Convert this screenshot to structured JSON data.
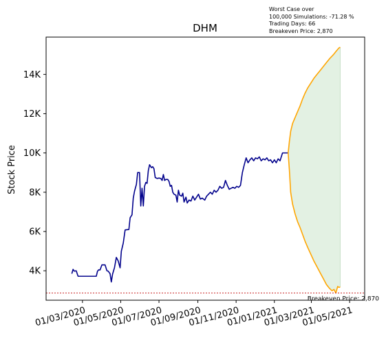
{
  "chart_data": {
    "type": "line",
    "title": "DHM",
    "xlabel": "",
    "ylabel": "Stock Price",
    "x_ticks": [
      "01/03/2020",
      "01/05/2020",
      "01/07/2020",
      "01/09/2020",
      "01/11/2020",
      "01/01/2021",
      "01/03/2021",
      "01/05/2021"
    ],
    "y_ticks": [
      "4K",
      "6K",
      "8K",
      "10K",
      "12K",
      "14K"
    ],
    "y_tick_values": [
      4000,
      6000,
      8000,
      10000,
      12000,
      14000
    ],
    "ylim": [
      2500,
      15900
    ],
    "xlim": [
      "2020-01-03",
      "2021-05-25"
    ],
    "grid": false,
    "annotation": {
      "lines": [
        "Worst Case over",
        "100,000 Simulations: -71.28 %",
        "Trading Days: 66",
        "Breakeven Price: 2,870"
      ]
    },
    "breakeven": {
      "value": 2870,
      "label": "Breakeven Price: 2,870",
      "color": "#c00000"
    },
    "colors": {
      "history": "#00008b",
      "simulation": "#ffa500",
      "band": "#e3f1e3",
      "band_edge": "#c8dfc8"
    },
    "series": [
      {
        "role": "history",
        "points": [
          [
            "2020-02-13",
            3850
          ],
          [
            "2020-02-15",
            4070
          ],
          [
            "2020-02-17",
            3980
          ],
          [
            "2020-02-20",
            4000
          ],
          [
            "2020-02-23",
            3720
          ],
          [
            "2020-03-05",
            3720
          ],
          [
            "2020-03-16",
            3720
          ],
          [
            "2020-03-23",
            3720
          ],
          [
            "2020-03-25",
            3980
          ],
          [
            "2020-03-27",
            4050
          ],
          [
            "2020-03-29",
            4040
          ],
          [
            "2020-04-01",
            4300
          ],
          [
            "2020-04-06",
            4300
          ],
          [
            "2020-04-09",
            4000
          ],
          [
            "2020-04-11",
            3980
          ],
          [
            "2020-04-14",
            3850
          ],
          [
            "2020-04-16",
            3430
          ],
          [
            "2020-04-18",
            3830
          ],
          [
            "2020-04-21",
            4150
          ],
          [
            "2020-04-24",
            4680
          ],
          [
            "2020-04-27",
            4500
          ],
          [
            "2020-04-30",
            4150
          ],
          [
            "2020-05-02",
            5000
          ],
          [
            "2020-05-05",
            5400
          ],
          [
            "2020-05-08",
            6080
          ],
          [
            "2020-05-14",
            6100
          ],
          [
            "2020-05-16",
            6700
          ],
          [
            "2020-05-19",
            6850
          ],
          [
            "2020-05-21",
            7700
          ],
          [
            "2020-05-23",
            8050
          ],
          [
            "2020-05-26",
            8400
          ],
          [
            "2020-05-28",
            9000
          ],
          [
            "2020-05-31",
            9000
          ],
          [
            "2020-06-02",
            7300
          ],
          [
            "2020-06-04",
            8200
          ],
          [
            "2020-06-06",
            7300
          ],
          [
            "2020-06-08",
            8300
          ],
          [
            "2020-06-10",
            8500
          ],
          [
            "2020-06-12",
            8450
          ],
          [
            "2020-06-14",
            9100
          ],
          [
            "2020-06-16",
            9400
          ],
          [
            "2020-06-19",
            9250
          ],
          [
            "2020-06-21",
            9300
          ],
          [
            "2020-06-23",
            9200
          ],
          [
            "2020-06-25",
            8750
          ],
          [
            "2020-06-28",
            8700
          ],
          [
            "2020-07-01",
            8720
          ],
          [
            "2020-07-04",
            8700
          ],
          [
            "2020-07-06",
            8600
          ],
          [
            "2020-07-08",
            8900
          ],
          [
            "2020-07-10",
            8600
          ],
          [
            "2020-07-12",
            8650
          ],
          [
            "2020-07-15",
            8650
          ],
          [
            "2020-07-17",
            8550
          ],
          [
            "2020-07-19",
            8300
          ],
          [
            "2020-07-21",
            8350
          ],
          [
            "2020-07-23",
            8000
          ],
          [
            "2020-07-25",
            7900
          ],
          [
            "2020-07-28",
            7850
          ],
          [
            "2020-07-30",
            7500
          ],
          [
            "2020-08-01",
            8100
          ],
          [
            "2020-08-03",
            7850
          ],
          [
            "2020-08-06",
            7800
          ],
          [
            "2020-08-08",
            7950
          ],
          [
            "2020-08-10",
            7500
          ],
          [
            "2020-08-13",
            7750
          ],
          [
            "2020-08-15",
            7450
          ],
          [
            "2020-08-18",
            7600
          ],
          [
            "2020-08-21",
            7550
          ],
          [
            "2020-08-24",
            7800
          ],
          [
            "2020-08-27",
            7600
          ],
          [
            "2020-08-30",
            7750
          ],
          [
            "2020-09-02",
            7900
          ],
          [
            "2020-09-05",
            7650
          ],
          [
            "2020-09-08",
            7700
          ],
          [
            "2020-09-12",
            7600
          ],
          [
            "2020-09-15",
            7800
          ],
          [
            "2020-09-18",
            7900
          ],
          [
            "2020-09-21",
            8000
          ],
          [
            "2020-09-24",
            7900
          ],
          [
            "2020-09-27",
            8100
          ],
          [
            "2020-09-30",
            8000
          ],
          [
            "2020-10-03",
            8100
          ],
          [
            "2020-10-06",
            8300
          ],
          [
            "2020-10-09",
            8200
          ],
          [
            "2020-10-12",
            8250
          ],
          [
            "2020-10-15",
            8600
          ],
          [
            "2020-10-18",
            8350
          ],
          [
            "2020-10-21",
            8150
          ],
          [
            "2020-10-24",
            8200
          ],
          [
            "2020-10-27",
            8250
          ],
          [
            "2020-10-30",
            8200
          ],
          [
            "2020-11-02",
            8300
          ],
          [
            "2020-11-05",
            8250
          ],
          [
            "2020-11-08",
            8350
          ],
          [
            "2020-11-11",
            9000
          ],
          [
            "2020-11-14",
            9400
          ],
          [
            "2020-11-17",
            9750
          ],
          [
            "2020-11-20",
            9500
          ],
          [
            "2020-11-23",
            9650
          ],
          [
            "2020-11-26",
            9750
          ],
          [
            "2020-11-29",
            9600
          ],
          [
            "2020-12-02",
            9750
          ],
          [
            "2020-12-05",
            9700
          ],
          [
            "2020-12-08",
            9800
          ],
          [
            "2020-12-11",
            9600
          ],
          [
            "2020-12-14",
            9700
          ],
          [
            "2020-12-17",
            9650
          ],
          [
            "2020-12-20",
            9750
          ],
          [
            "2020-12-23",
            9600
          ],
          [
            "2020-12-26",
            9650
          ],
          [
            "2020-12-29",
            9500
          ],
          [
            "2021-01-01",
            9650
          ],
          [
            "2021-01-04",
            9500
          ],
          [
            "2021-01-07",
            9700
          ],
          [
            "2021-01-10",
            9600
          ],
          [
            "2021-01-14",
            10000
          ],
          [
            "2021-01-20",
            10000
          ],
          [
            "2021-01-23",
            10000
          ]
        ]
      },
      {
        "role": "simulation-upper",
        "points": [
          [
            "2021-01-23",
            10000
          ],
          [
            "2021-01-25",
            10600
          ],
          [
            "2021-01-27",
            11100
          ],
          [
            "2021-01-30",
            11500
          ],
          [
            "2021-02-03",
            11800
          ],
          [
            "2021-02-07",
            12100
          ],
          [
            "2021-02-11",
            12400
          ],
          [
            "2021-02-15",
            12750
          ],
          [
            "2021-02-19",
            13050
          ],
          [
            "2021-02-23",
            13300
          ],
          [
            "2021-02-28",
            13550
          ],
          [
            "2021-03-05",
            13800
          ],
          [
            "2021-03-10",
            14000
          ],
          [
            "2021-03-15",
            14200
          ],
          [
            "2021-03-20",
            14400
          ],
          [
            "2021-03-25",
            14600
          ],
          [
            "2021-03-30",
            14800
          ],
          [
            "2021-04-05",
            15000
          ],
          [
            "2021-04-10",
            15200
          ],
          [
            "2021-04-14",
            15350
          ],
          [
            "2021-04-16",
            15380
          ]
        ]
      },
      {
        "role": "simulation-lower",
        "points": [
          [
            "2021-01-23",
            10000
          ],
          [
            "2021-01-25",
            9100
          ],
          [
            "2021-01-27",
            8000
          ],
          [
            "2021-01-30",
            7400
          ],
          [
            "2021-02-03",
            6900
          ],
          [
            "2021-02-07",
            6500
          ],
          [
            "2021-02-11",
            6200
          ],
          [
            "2021-02-15",
            5850
          ],
          [
            "2021-02-19",
            5500
          ],
          [
            "2021-02-23",
            5200
          ],
          [
            "2021-02-28",
            4850
          ],
          [
            "2021-03-05",
            4500
          ],
          [
            "2021-03-10",
            4200
          ],
          [
            "2021-03-15",
            3900
          ],
          [
            "2021-03-20",
            3600
          ],
          [
            "2021-03-25",
            3300
          ],
          [
            "2021-03-30",
            3100
          ],
          [
            "2021-04-03",
            2980
          ],
          [
            "2021-04-06",
            3050
          ],
          [
            "2021-04-09",
            2870
          ],
          [
            "2021-04-12",
            3200
          ],
          [
            "2021-04-14",
            3150
          ],
          [
            "2021-04-16",
            3180
          ]
        ]
      }
    ]
  }
}
